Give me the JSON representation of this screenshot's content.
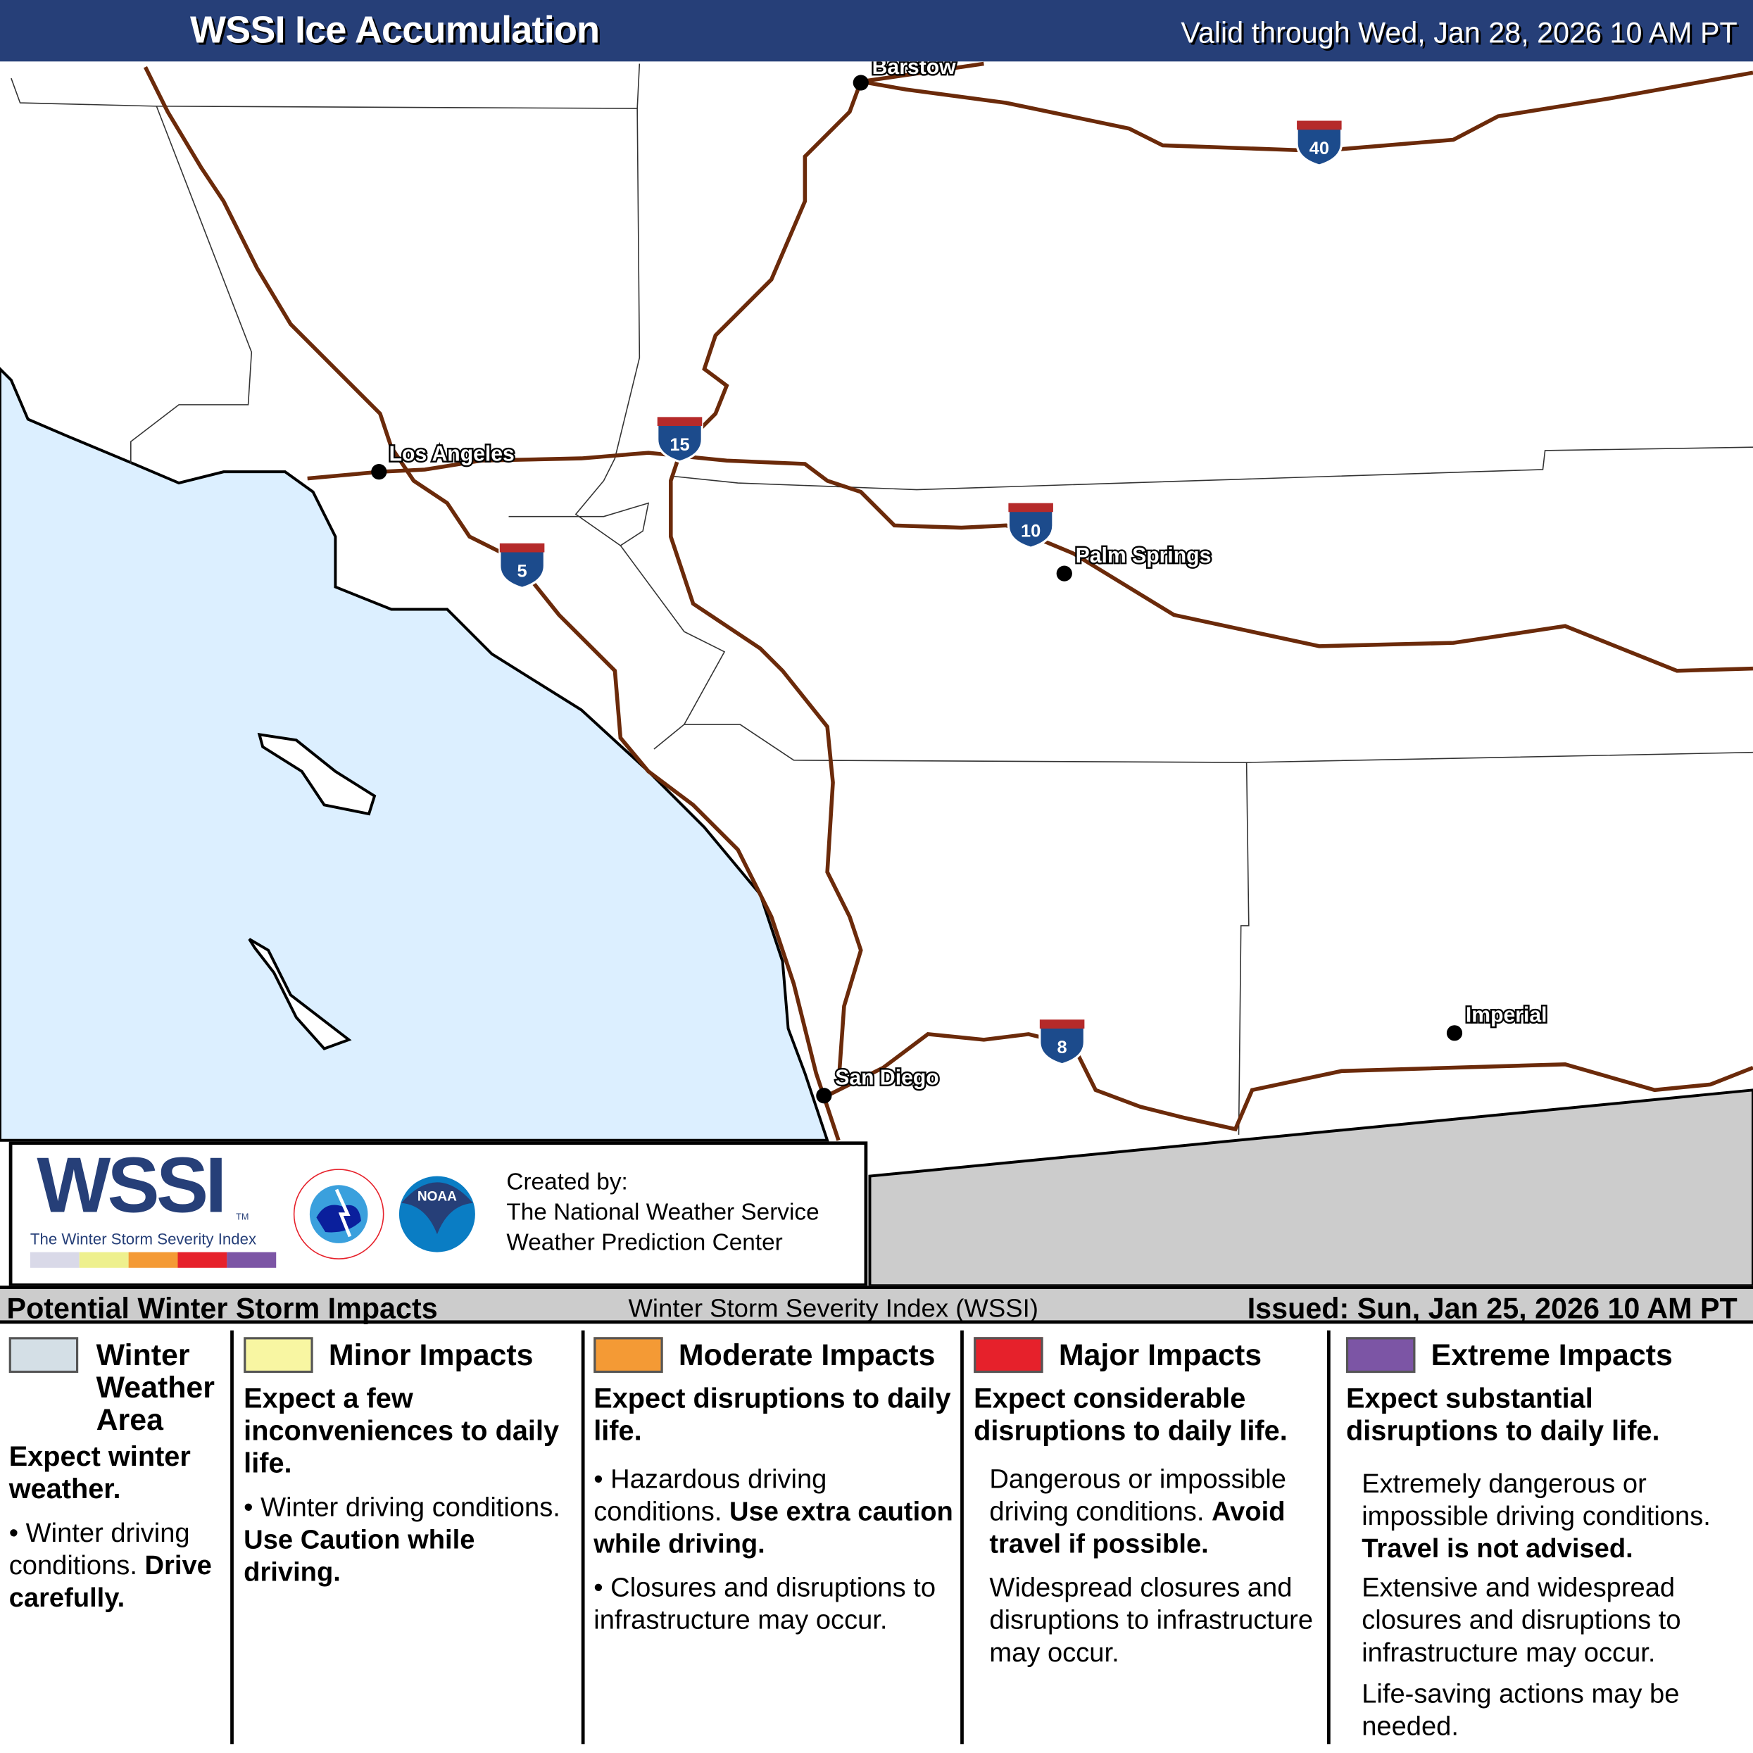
{
  "header": {
    "title": "WSSI Ice Accumulation",
    "valid": "Valid through Wed, Jan 28, 2026 10 AM PT"
  },
  "map": {
    "cities": [
      "Barstow",
      "Los Angeles",
      "Palm Springs",
      "San Diego",
      "Imperial"
    ],
    "interstates": [
      "40",
      "15",
      "10",
      "5",
      "8"
    ],
    "colors": {
      "ocean": "#dcefff",
      "road": "#6b2a0a",
      "mexico": "#cccccc",
      "shield_blue": "#1c4b8c",
      "shield_red": "#b52a2a"
    }
  },
  "credit": {
    "logo": "WSSI",
    "tm": "TM",
    "subtitle": "The Winter Storm Severity Index",
    "created_by": "Created by:",
    "org1": "The National Weather Service",
    "org2": "Weather Prediction Center",
    "nws_logo": "NATIONAL WEATHER SERVICE",
    "noaa_logo": "NOAA",
    "colors": [
      "#d9d9e8",
      "#eef08e",
      "#f49a35",
      "#e6212b",
      "#7c55a5"
    ]
  },
  "bar": {
    "left": "Potential Winter Storm Impacts",
    "middle": "Winter Storm Severity Index (WSSI)",
    "right": "Issued: Sun, Jan 25, 2026 10 AM PT"
  },
  "legend": [
    {
      "title": "Winter Weather Area",
      "color": "#d4dfe6",
      "headline": "Expect winter weather.",
      "text": "Winter driving conditions.",
      "bold": "Drive carefully."
    },
    {
      "title": "Minor Impacts",
      "color": "#f8f6a2",
      "headline": "Expect a few inconveniences to daily life.",
      "text": "Winter driving conditions.",
      "bold": "Use Caution while driving."
    },
    {
      "title": "Moderate Impacts",
      "color": "#f49a35",
      "headline": "Expect disruptions to daily life.",
      "text": "Hazardous driving conditions.",
      "bold": "Use extra caution while driving.",
      "text2": "Closures and disruptions to infrastructure may occur."
    },
    {
      "title": "Major Impacts",
      "color": "#e6212b",
      "headline": "Expect considerable disruptions to daily life.",
      "text": "Dangerous or impossible driving conditions.",
      "bold": "Avoid travel if possible.",
      "text2": "Widespread closures and disruptions to infrastructure may occur."
    },
    {
      "title": "Extreme Impacts",
      "color": "#7c55a5",
      "headline": "Expect substantial disruptions to daily life.",
      "text": "Extremely dangerous or impossible driving conditions.",
      "bold": "Travel is not advised.",
      "text2": "Extensive and widespread closures and disruptions to infrastructure may occur.",
      "text3": "Life-saving actions may be needed."
    }
  ]
}
